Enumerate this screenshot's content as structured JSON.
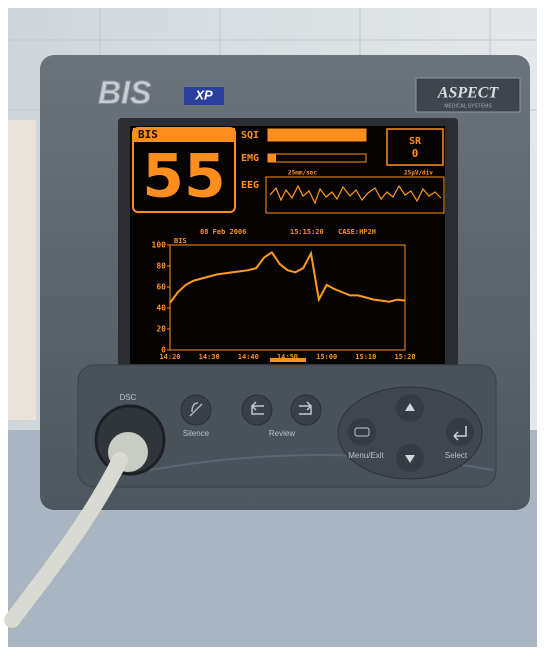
{
  "device": {
    "brand": "BIS",
    "model": "XP",
    "maker": "ASPECT",
    "maker_sub": "MEDICAL SYSTEMS"
  },
  "screen": {
    "bis_label": "BIS",
    "bis_value": 55,
    "sqi_label": "SQI",
    "emg_label": "EMG",
    "eeg_label": "EEG",
    "eeg_speed": "25mm/sec",
    "eeg_scale": "25µV/div",
    "sr_label": "SR",
    "sr_value": 0,
    "date": "08 Feb 2006",
    "time": "15:15:20",
    "case": "CASE:HP2H"
  },
  "chart_data": {
    "type": "line",
    "x": [
      "14:20",
      null,
      null,
      null,
      null,
      "14:30",
      null,
      null,
      null,
      null,
      "14:40",
      null,
      null,
      null,
      null,
      "14:50",
      null,
      null,
      null,
      null,
      "15:00",
      null,
      null,
      null,
      null,
      "15:10",
      null,
      null,
      null,
      null,
      "15:20"
    ],
    "series": [
      {
        "name": "BIS",
        "color": "#ff9a1a",
        "values": [
          45,
          55,
          62,
          66,
          68,
          70,
          72,
          73,
          74,
          75,
          76,
          78,
          88,
          93,
          82,
          76,
          74,
          78,
          92,
          48,
          62,
          58,
          55,
          52,
          52,
          50,
          48,
          47,
          46,
          48,
          47
        ]
      }
    ],
    "ylim": [
      0,
      100
    ],
    "yticks": [
      0,
      20,
      40,
      60,
      80,
      100
    ],
    "grid": false
  },
  "buttons": {
    "dsc": "DSC",
    "silence": "Silence",
    "review": "Review",
    "menu": "Menu/Exit",
    "select": "Select"
  }
}
